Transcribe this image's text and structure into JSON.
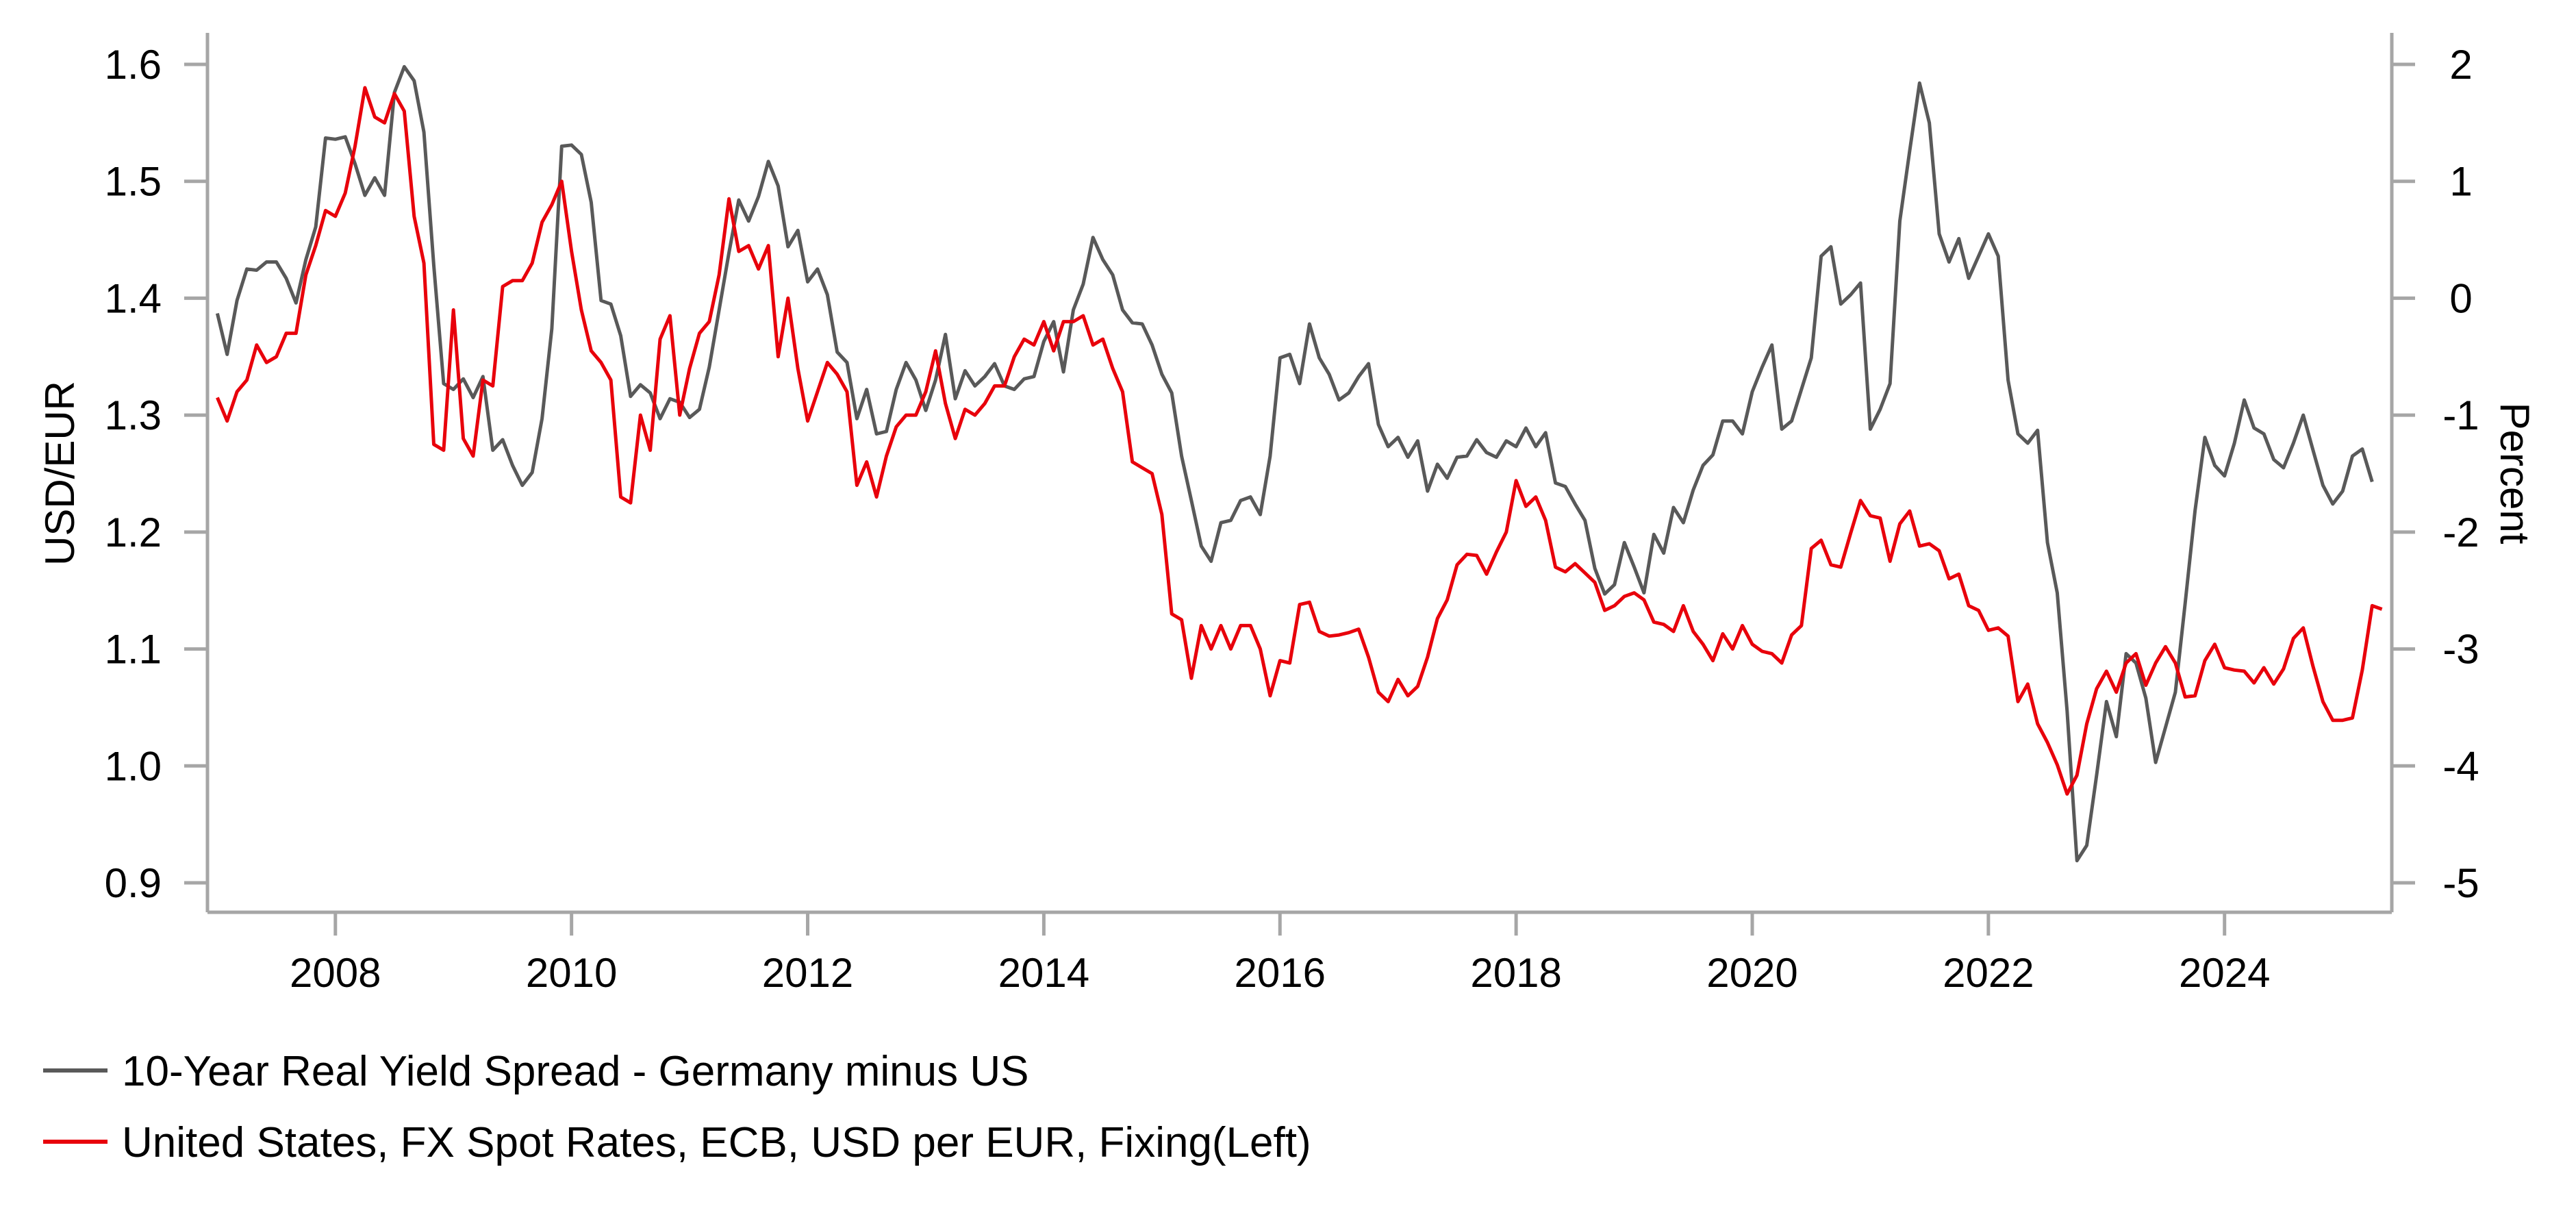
{
  "chart_data": {
    "type": "line",
    "title": "",
    "xlabel": "",
    "ylabel_left": "USD/EUR",
    "ylabel_right": "Percent",
    "xlim": [
      "2006-12",
      "2025-06"
    ],
    "ylim_left": [
      0.9,
      1.6
    ],
    "ylim_right": [
      -5,
      2
    ],
    "x_ticks": [
      "2008",
      "2010",
      "2012",
      "2014",
      "2016",
      "2018",
      "2020",
      "2022",
      "2024"
    ],
    "y_ticks_left": [
      "0.9",
      "1.0",
      "1.1",
      "1.2",
      "1.3",
      "1.4",
      "1.5",
      "1.6"
    ],
    "y_ticks_right": [
      "-5",
      "-4",
      "-3",
      "-2",
      "-1",
      "0",
      "1",
      "2"
    ],
    "grid": false,
    "legend_placement": "bottom-left",
    "series": [
      {
        "name": "10-Year Real Yield Spread - Germany minus US",
        "axis": "right",
        "color": "#595959",
        "start": "2007-01",
        "frequency": "monthly",
        "values": [
          -0.13,
          -0.48,
          -0.02,
          0.25,
          0.24,
          0.31,
          0.31,
          0.17,
          -0.04,
          0.33,
          0.61,
          1.37,
          1.36,
          1.38,
          1.15,
          0.88,
          1.03,
          0.88,
          1.76,
          1.98,
          1.86,
          1.42,
          0.28,
          -0.73,
          -0.78,
          -0.69,
          -0.85,
          -0.67,
          -1.3,
          -1.21,
          -1.43,
          -1.6,
          -1.49,
          -1.03,
          -0.26,
          1.3,
          1.31,
          1.23,
          0.82,
          -0.02,
          -0.05,
          -0.32,
          -0.84,
          -0.74,
          -0.81,
          -1.03,
          -0.86,
          -0.89,
          -1.02,
          -0.95,
          -0.59,
          -0.1,
          0.39,
          0.84,
          0.66,
          0.87,
          1.17,
          0.96,
          0.44,
          0.58,
          0.14,
          0.25,
          0.03,
          -0.46,
          -0.55,
          -1.03,
          -0.78,
          -1.16,
          -1.14,
          -0.78,
          -0.55,
          -0.7,
          -0.96,
          -0.7,
          -0.31,
          -0.86,
          -0.62,
          -0.75,
          -0.67,
          -0.56,
          -0.75,
          -0.78,
          -0.69,
          -0.67,
          -0.37,
          -0.2,
          -0.63,
          -0.1,
          0.12,
          0.52,
          0.33,
          0.2,
          -0.1,
          -0.21,
          -0.22,
          -0.4,
          -0.65,
          -0.81,
          -1.35,
          -1.73,
          -2.12,
          -2.25,
          -1.92,
          -1.9,
          -1.73,
          -1.7,
          -1.85,
          -1.35,
          -0.51,
          -0.48,
          -0.73,
          -0.22,
          -0.51,
          -0.65,
          -0.87,
          -0.81,
          -0.67,
          -0.56,
          -1.08,
          -1.27,
          -1.19,
          -1.36,
          -1.22,
          -1.65,
          -1.42,
          -1.54,
          -1.36,
          -1.35,
          -1.21,
          -1.32,
          -1.36,
          -1.22,
          -1.27,
          -1.11,
          -1.27,
          -1.15,
          -1.58,
          -1.61,
          -1.76,
          -1.9,
          -2.31,
          -2.53,
          -2.45,
          -2.09,
          -2.3,
          -2.52,
          -2.02,
          -2.18,
          -1.79,
          -1.92,
          -1.64,
          -1.43,
          -1.34,
          -1.05,
          -1.05,
          -1.16,
          -0.8,
          -0.59,
          -0.4,
          -1.12,
          -1.05,
          -0.78,
          -0.51,
          0.36,
          0.44,
          -0.05,
          0.03,
          0.13,
          -1.12,
          -0.95,
          -0.73,
          0.66,
          1.26,
          1.84,
          1.5,
          0.55,
          0.31,
          0.51,
          0.17,
          0.36,
          0.55,
          0.36,
          -0.7,
          -1.16,
          -1.24,
          -1.13,
          -2.09,
          -2.52,
          -3.53,
          -4.81,
          -4.68,
          -4.08,
          -3.45,
          -3.75,
          -3.04,
          -3.12,
          -3.42,
          -3.97,
          -3.67,
          -3.37,
          -2.61,
          -1.82,
          -1.19,
          -1.43,
          -1.52,
          -1.24,
          -0.87,
          -1.11,
          -1.16,
          -1.38,
          -1.45,
          -1.24,
          -1.0,
          -1.3,
          -1.6,
          -1.76,
          -1.65,
          -1.35,
          -1.29,
          -1.57
        ]
      },
      {
        "name": "United States, FX Spot Rates, ECB, USD per EUR, Fixing(Left)",
        "axis": "left",
        "color": "#e8000b",
        "start": "2007-01",
        "frequency": "monthly",
        "values": [
          1.315,
          1.295,
          1.32,
          1.33,
          1.36,
          1.345,
          1.35,
          1.37,
          1.37,
          1.42,
          1.445,
          1.475,
          1.47,
          1.49,
          1.53,
          1.58,
          1.555,
          1.55,
          1.575,
          1.56,
          1.47,
          1.43,
          1.275,
          1.27,
          1.39,
          1.28,
          1.265,
          1.33,
          1.325,
          1.41,
          1.415,
          1.415,
          1.43,
          1.465,
          1.48,
          1.5,
          1.44,
          1.39,
          1.355,
          1.345,
          1.33,
          1.23,
          1.225,
          1.3,
          1.27,
          1.365,
          1.385,
          1.3,
          1.34,
          1.37,
          1.38,
          1.42,
          1.485,
          1.44,
          1.445,
          1.425,
          1.445,
          1.35,
          1.4,
          1.34,
          1.295,
          1.32,
          1.345,
          1.335,
          1.32,
          1.24,
          1.26,
          1.23,
          1.265,
          1.29,
          1.3,
          1.3,
          1.32,
          1.355,
          1.31,
          1.28,
          1.305,
          1.3,
          1.31,
          1.325,
          1.325,
          1.35,
          1.365,
          1.36,
          1.38,
          1.355,
          1.38,
          1.38,
          1.385,
          1.36,
          1.365,
          1.34,
          1.32,
          1.26,
          1.255,
          1.25,
          1.215,
          1.13,
          1.125,
          1.075,
          1.12,
          1.1,
          1.12,
          1.1,
          1.12,
          1.12,
          1.1,
          1.06,
          1.09,
          1.088,
          1.138,
          1.14,
          1.115,
          1.111,
          1.112,
          1.114,
          1.117,
          1.093,
          1.063,
          1.055,
          1.074,
          1.06,
          1.068,
          1.093,
          1.126,
          1.142,
          1.172,
          1.181,
          1.18,
          1.164,
          1.183,
          1.2,
          1.244,
          1.222,
          1.23,
          1.21,
          1.17,
          1.166,
          1.173,
          1.165,
          1.157,
          1.133,
          1.137,
          1.145,
          1.148,
          1.142,
          1.123,
          1.121,
          1.115,
          1.137,
          1.115,
          1.104,
          1.09,
          1.113,
          1.1,
          1.12,
          1.104,
          1.098,
          1.096,
          1.088,
          1.112,
          1.12,
          1.186,
          1.193,
          1.172,
          1.17,
          1.199,
          1.227,
          1.214,
          1.212,
          1.175,
          1.207,
          1.218,
          1.188,
          1.19,
          1.184,
          1.16,
          1.164,
          1.137,
          1.133,
          1.116,
          1.118,
          1.111,
          1.055,
          1.07,
          1.036,
          1.02,
          1.001,
          0.976,
          0.992,
          1.036,
          1.066,
          1.081,
          1.063,
          1.088,
          1.096,
          1.069,
          1.088,
          1.102,
          1.088,
          1.059,
          1.06,
          1.09,
          1.104,
          1.084,
          1.082,
          1.081,
          1.071,
          1.084,
          1.07,
          1.083,
          1.109,
          1.118,
          1.085,
          1.055,
          1.039,
          1.039,
          1.041,
          1.082,
          1.137,
          1.134
        ]
      }
    ]
  },
  "colors": {
    "axis": "#a6a6a6",
    "spread": "#595959",
    "fx": "#e8000b"
  }
}
